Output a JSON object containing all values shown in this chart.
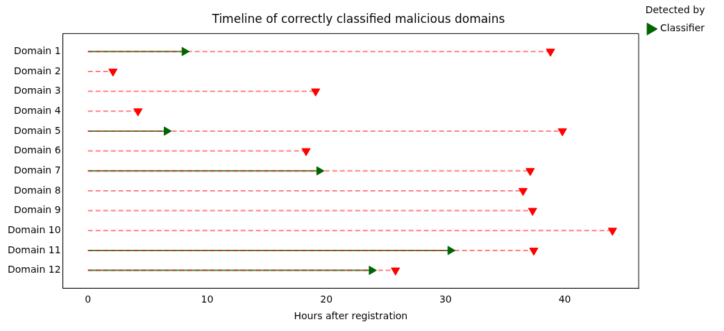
{
  "chart_data": {
    "type": "lollipop",
    "orientation": "horizontal",
    "title": "Timeline of correctly classified malicious domains",
    "xlabel": "Hours after registration",
    "legend_title": "Detected by",
    "legend": "top right",
    "grid": false,
    "categories": [
      "Domain 1",
      "Domain 2",
      "Domain 3",
      "Domain 4",
      "Domain 5",
      "Domain 6",
      "Domain 7",
      "Domain 8",
      "Domain 9",
      "Domain 10",
      "Domain 11",
      "Domain 12"
    ],
    "xlim": [
      -2.1,
      46.2
    ],
    "xticks": [
      0,
      10,
      20,
      30,
      40
    ],
    "series": [
      {
        "name": "Classifier",
        "color": "#006400",
        "marker": "triangle",
        "line_style": "solid",
        "values": [
          8.1,
          null,
          null,
          null,
          6.6,
          null,
          19.4,
          null,
          null,
          null,
          30.4,
          23.8
        ]
      },
      {
        "color": "#ff0000",
        "marker": "triangle",
        "line_style": "dashed",
        "values": [
          38.8,
          2.1,
          19.1,
          4.2,
          39.8,
          18.3,
          37.1,
          36.5,
          37.3,
          44.0,
          37.4,
          25.8
        ]
      }
    ]
  }
}
